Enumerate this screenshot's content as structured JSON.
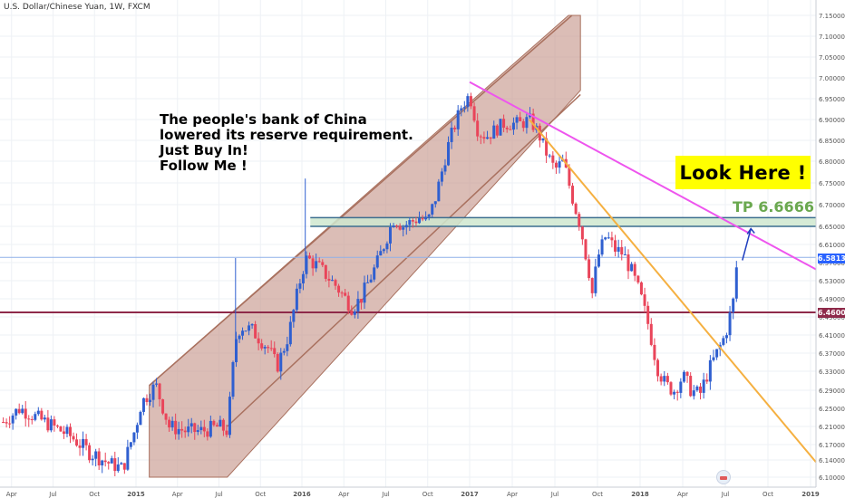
{
  "header": {
    "symbol_title": "U.S. Dollar/Chinese Yuan, 1W, FXCM"
  },
  "annotations": {
    "main_text": [
      "The people's bank of China",
      "lowered its reserve requirement.",
      "Just Buy In!",
      "Follow Me !"
    ],
    "look_here": "Look Here !",
    "take_profit": "TP 6.6666"
  },
  "colors": {
    "bull": "#2f5fd0",
    "bear": "#e9455a",
    "channel_fill": "#c79a8f",
    "channel_border": "#a9715f",
    "magenta_trend": "#ee55ee",
    "orange_trend": "#f5b041",
    "tp_zone": "#cfe8cf",
    "tp_line": "#3c6e8f",
    "current_price": "#2962ff",
    "support_line": "#8e2a4a"
  },
  "chart_data": {
    "type": "candlestick",
    "title": "U.S. Dollar/Chinese Yuan, 1W, FXCM",
    "timeframe": "1W",
    "x_tick_labels": [
      "Apr",
      "Jul",
      "Oct",
      "2015",
      "Apr",
      "Jul",
      "Oct",
      "2016",
      "Apr",
      "Jul",
      "Oct",
      "2017",
      "Apr",
      "Jul",
      "Oct",
      "2018",
      "Apr",
      "Jul",
      "Oct",
      "2019"
    ],
    "y_tick_labels": [
      "7.15000",
      "7.10000",
      "7.05000",
      "7.00000",
      "6.95000",
      "6.90000",
      "6.85000",
      "6.80000",
      "6.75000",
      "6.70000",
      "6.65000",
      "6.61000",
      "6.57000",
      "6.53000",
      "6.49000",
      "6.45000",
      "6.41000",
      "6.37000",
      "6.33000",
      "6.29000",
      "6.25000",
      "6.21000",
      "6.17000",
      "6.14000",
      "6.10000"
    ],
    "y_ticks": [
      7.15,
      7.1,
      7.05,
      7.0,
      6.95,
      6.9,
      6.85,
      6.8,
      6.75,
      6.7,
      6.65,
      6.61,
      6.57,
      6.53,
      6.49,
      6.45,
      6.41,
      6.37,
      6.33,
      6.29,
      6.25,
      6.21,
      6.17,
      6.14,
      6.1
    ],
    "current_price": "6.58139",
    "support_level": "6.46000",
    "take_profit": 6.6666,
    "tp_zone": [
      6.65,
      6.67
    ],
    "series": [
      {
        "name": "close",
        "points": [
          [
            2014.2,
            6.22
          ],
          [
            2014.3,
            6.25
          ],
          [
            2014.4,
            6.23
          ],
          [
            2014.5,
            6.21
          ],
          [
            2014.6,
            6.19
          ],
          [
            2014.7,
            6.16
          ],
          [
            2014.8,
            6.14
          ],
          [
            2014.85,
            6.13
          ],
          [
            2014.92,
            6.12
          ],
          [
            2015.0,
            6.21
          ],
          [
            2015.03,
            6.26
          ],
          [
            2015.07,
            6.28
          ],
          [
            2015.12,
            6.3
          ],
          [
            2015.2,
            6.21
          ],
          [
            2015.3,
            6.2
          ],
          [
            2015.4,
            6.2
          ],
          [
            2015.5,
            6.21
          ],
          [
            2015.55,
            6.2
          ],
          [
            2015.6,
            6.4
          ],
          [
            2015.63,
            6.43
          ],
          [
            2015.7,
            6.42
          ],
          [
            2015.8,
            6.38
          ],
          [
            2015.85,
            6.34
          ],
          [
            2015.92,
            6.41
          ],
          [
            2016.0,
            6.55
          ],
          [
            2016.03,
            6.58
          ],
          [
            2016.1,
            6.56
          ],
          [
            2016.2,
            6.52
          ],
          [
            2016.3,
            6.47
          ],
          [
            2016.35,
            6.49
          ],
          [
            2016.45,
            6.57
          ],
          [
            2016.55,
            6.67
          ],
          [
            2016.6,
            6.65
          ],
          [
            2016.7,
            6.67
          ],
          [
            2016.75,
            6.66
          ],
          [
            2016.8,
            6.72
          ],
          [
            2016.88,
            6.85
          ],
          [
            2016.95,
            6.93
          ],
          [
            2017.0,
            6.96
          ],
          [
            2017.05,
            6.87
          ],
          [
            2017.1,
            6.86
          ],
          [
            2017.2,
            6.89
          ],
          [
            2017.3,
            6.89
          ],
          [
            2017.35,
            6.9
          ],
          [
            2017.4,
            6.87
          ],
          [
            2017.45,
            6.82
          ],
          [
            2017.5,
            6.78
          ],
          [
            2017.55,
            6.8
          ],
          [
            2017.6,
            6.72
          ],
          [
            2017.65,
            6.65
          ],
          [
            2017.7,
            6.55
          ],
          [
            2017.72,
            6.5
          ],
          [
            2017.75,
            6.58
          ],
          [
            2017.8,
            6.63
          ],
          [
            2017.85,
            6.6
          ],
          [
            2017.9,
            6.59
          ],
          [
            2017.95,
            6.55
          ],
          [
            2018.0,
            6.5
          ],
          [
            2018.05,
            6.43
          ],
          [
            2018.1,
            6.34
          ],
          [
            2018.15,
            6.3
          ],
          [
            2018.2,
            6.29
          ],
          [
            2018.25,
            6.32
          ],
          [
            2018.3,
            6.29
          ],
          [
            2018.35,
            6.28
          ],
          [
            2018.4,
            6.33
          ],
          [
            2018.45,
            6.37
          ],
          [
            2018.5,
            6.41
          ],
          [
            2018.55,
            6.49
          ],
          [
            2018.57,
            6.58
          ]
        ]
      }
    ]
  }
}
